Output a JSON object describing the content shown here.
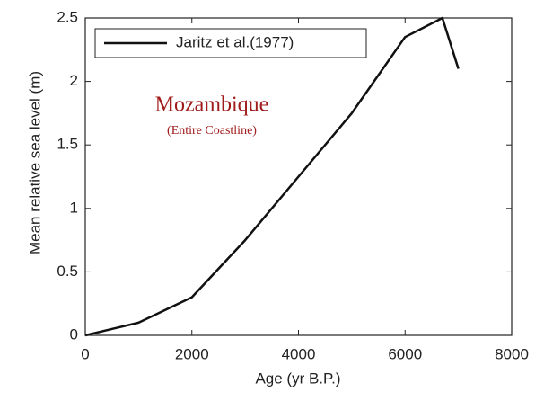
{
  "chart_data": {
    "type": "line",
    "x": [
      0,
      1000,
      2000,
      3000,
      4000,
      5000,
      6000,
      6700,
      7000
    ],
    "series": [
      {
        "name": "Jaritz et al.(1977)",
        "color": "#111111",
        "values": [
          0,
          0.1,
          0.3,
          0.75,
          1.25,
          1.75,
          2.35,
          2.5,
          2.1
        ]
      }
    ],
    "xlabel": "Age (yr B.P.)",
    "ylabel": "Mean relative sea level (m)",
    "annotations": [
      "Mozambique",
      "(Entire Coastline)"
    ],
    "xlim": [
      0,
      8000
    ],
    "xticks": [
      0,
      2000,
      4000,
      6000,
      8000
    ],
    "ylim": [
      0,
      2.5
    ],
    "yticks": [
      0,
      0.5,
      1,
      1.5,
      2,
      2.5
    ],
    "legend": "upper left"
  }
}
